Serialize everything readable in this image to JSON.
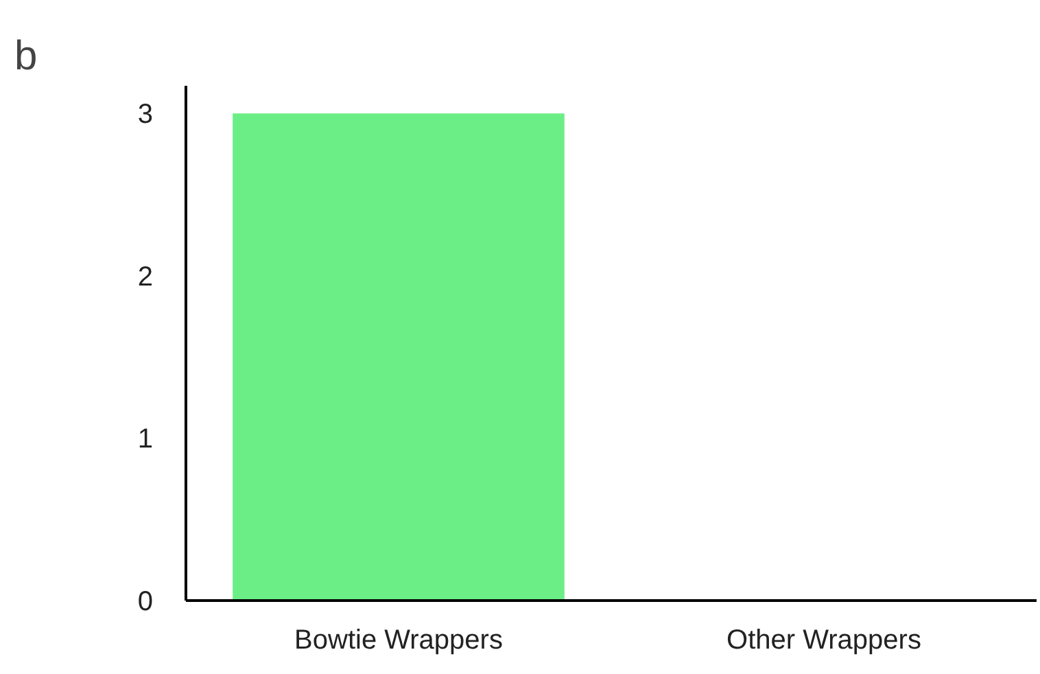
{
  "chart_data": {
    "type": "bar",
    "title": "b",
    "categories": [
      "Bowtie Wrappers",
      "Other Wrappers"
    ],
    "values": [
      3,
      0
    ],
    "color": "#6bee86",
    "ylim": [
      0,
      3.17
    ],
    "yticks": [
      0,
      1,
      2,
      3
    ],
    "grid": false
  }
}
